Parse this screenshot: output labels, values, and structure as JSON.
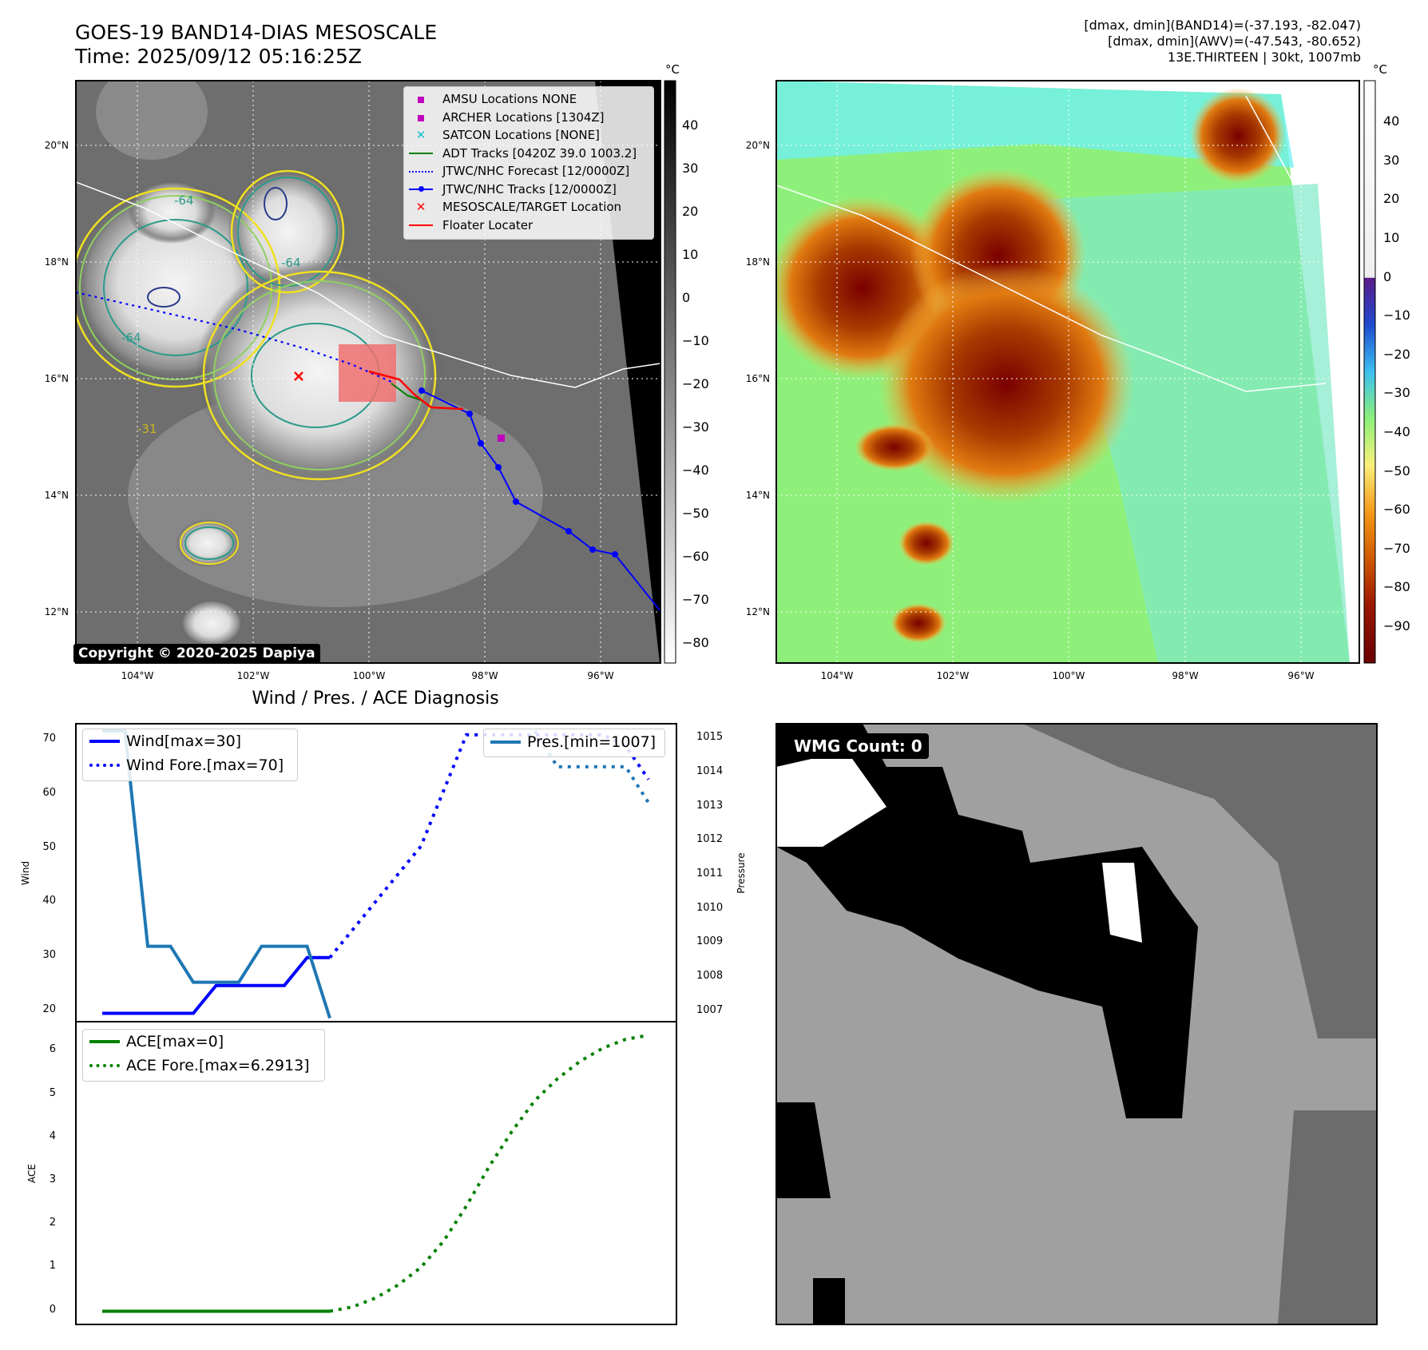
{
  "header": {
    "title_line1": "GOES-19 BAND14-DIAS MESOSCALE",
    "title_line2": "Time: 2025/09/12 05:16:25Z",
    "stats_line1": "[dmax, dmin](BAND14)=(-37.193, -82.047)",
    "stats_line2": "[dmax, dmin](AWV)=(-47.543, -80.652)",
    "stats_line3": "13E.THIRTEEN | 30kt, 1007mb"
  },
  "map_left": {
    "copyright": "Copyright © 2020-2025 Dapiya",
    "lat_labels": [
      "20°N",
      "18°N",
      "16°N",
      "14°N",
      "12°N"
    ],
    "lon_labels": [
      "104°W",
      "102°W",
      "100°W",
      "98°W",
      "96°W"
    ],
    "colorbar_unit": "°C",
    "colorbar_ticks": [
      "40",
      "30",
      "20",
      "10",
      "0",
      "−10",
      "−20",
      "−30",
      "−40",
      "−50",
      "−60",
      "−70",
      "−80"
    ],
    "contour_labels": [
      "-64",
      "-64",
      "-64",
      "-31"
    ],
    "legend": [
      {
        "label": "AMSU Locations NONE",
        "color": "#bf00bf",
        "marker": "square"
      },
      {
        "label": "ARCHER Locations [1304Z]",
        "color": "#bf00bf",
        "marker": "square"
      },
      {
        "label": "SATCON Locations [NONE]",
        "color": "#17becf",
        "marker": "x"
      },
      {
        "label": "ADT Tracks [0420Z 39.0 1003.2]",
        "color": "#008000",
        "marker": "line"
      },
      {
        "label": "JTWC/NHC Forecast [12/0000Z]",
        "color": "#0000ff",
        "marker": "dotted"
      },
      {
        "label": "JTWC/NHC Tracks [12/0000Z]",
        "color": "#0000ff",
        "marker": "line-dot"
      },
      {
        "label": "MESOSCALE/TARGET Location",
        "color": "#ff0000",
        "marker": "x"
      },
      {
        "label": "Floater Locater",
        "color": "#ff0000",
        "marker": "line"
      }
    ]
  },
  "map_right": {
    "lat_labels": [
      "20°N",
      "18°N",
      "16°N",
      "14°N",
      "12°N"
    ],
    "lon_labels": [
      "104°W",
      "102°W",
      "100°W",
      "98°W",
      "96°W"
    ],
    "colorbar_unit": "°C",
    "colorbar_ticks": [
      "40",
      "30",
      "20",
      "10",
      "0",
      "−10",
      "−20",
      "−30",
      "−40",
      "−50",
      "−60",
      "−70",
      "−80",
      "−90"
    ]
  },
  "diagnosis": {
    "title": "Wind / Pres. / ACE Diagnosis",
    "wind_ylabel": "Wind",
    "pres_ylabel": "Pressure",
    "ace_ylabel": "ACE",
    "wind_legend": [
      "Wind[max=30]",
      "Wind Fore.[max=70]"
    ],
    "pres_legend": [
      "Pres.[min=1007]"
    ],
    "ace_legend": [
      "ACE[max=0]",
      "ACE Fore.[max=6.2913]"
    ],
    "wind_ticks": [
      "70",
      "60",
      "50",
      "40",
      "30",
      "20"
    ],
    "pres_ticks": [
      "1015",
      "1014",
      "1013",
      "1012",
      "1011",
      "1010",
      "1009",
      "1008",
      "1007"
    ],
    "ace_ticks": [
      "6",
      "5",
      "4",
      "3",
      "2",
      "1",
      "0"
    ]
  },
  "wmg": {
    "label": "WMG Count: 0"
  },
  "chart_data": [
    {
      "type": "line",
      "title": "Wind / Pres. / ACE Diagnosis",
      "ylabel": "Wind",
      "ylim": [
        18.5,
        72
      ],
      "x": [
        0,
        1,
        2,
        3,
        4,
        5,
        6,
        7,
        8,
        9,
        10,
        11,
        12,
        13,
        14,
        15,
        16,
        17,
        18,
        19,
        20,
        21,
        22,
        23,
        24
      ],
      "series": [
        {
          "name": "Wind[max=30]",
          "color": "#0000ff",
          "style": "solid",
          "x": [
            0,
            1,
            2,
            3,
            4,
            5,
            6,
            7,
            8,
            9,
            10
          ],
          "values": [
            20,
            20,
            20,
            20,
            20,
            25,
            25,
            25,
            25,
            30,
            30
          ]
        },
        {
          "name": "Wind Fore.[max=70]",
          "color": "#0000ff",
          "style": "dotted",
          "x": [
            10,
            11,
            12,
            13,
            14,
            15,
            16,
            17,
            18,
            19,
            20,
            21,
            22,
            23,
            24
          ],
          "values": [
            30,
            35,
            40,
            45,
            50,
            60,
            70,
            70,
            70,
            70,
            70,
            70,
            70,
            68,
            62
          ]
        }
      ]
    },
    {
      "type": "line",
      "ylabel": "Pressure",
      "ylim": [
        1006.9,
        1015.2
      ],
      "series": [
        {
          "name": "Pres.[min=1007]",
          "color": "#1f77b4",
          "style": "solid",
          "x": [
            0,
            1,
            2,
            3,
            4,
            5,
            6,
            7,
            8,
            9,
            10
          ],
          "values": [
            1015,
            1015,
            1009,
            1009,
            1008,
            1008,
            1008,
            1009,
            1009,
            1009,
            1007
          ]
        },
        {
          "name": "Pres. Fore.",
          "color": "#1f77b4",
          "style": "dotted",
          "x": [
            19,
            20,
            21,
            22,
            23,
            24
          ],
          "values": [
            1015,
            1014,
            1014,
            1014,
            1014,
            1013
          ]
        }
      ]
    },
    {
      "type": "line",
      "ylabel": "ACE",
      "ylim": [
        -0.3,
        6.6
      ],
      "series": [
        {
          "name": "ACE[max=0]",
          "color": "#008000",
          "style": "solid",
          "x": [
            0,
            1,
            2,
            3,
            4,
            5,
            6,
            7,
            8,
            9,
            10
          ],
          "values": [
            0,
            0,
            0,
            0,
            0,
            0,
            0,
            0,
            0,
            0,
            0
          ]
        },
        {
          "name": "ACE Fore.[max=6.2913]",
          "color": "#008000",
          "style": "dotted",
          "x": [
            10,
            11,
            12,
            13,
            14,
            15,
            16,
            17,
            18,
            19,
            20,
            21,
            22,
            23,
            24
          ],
          "values": [
            0,
            0.1,
            0.3,
            0.6,
            1.0,
            1.6,
            2.4,
            3.3,
            4.1,
            4.8,
            5.3,
            5.7,
            6.0,
            6.2,
            6.29
          ]
        }
      ]
    }
  ]
}
